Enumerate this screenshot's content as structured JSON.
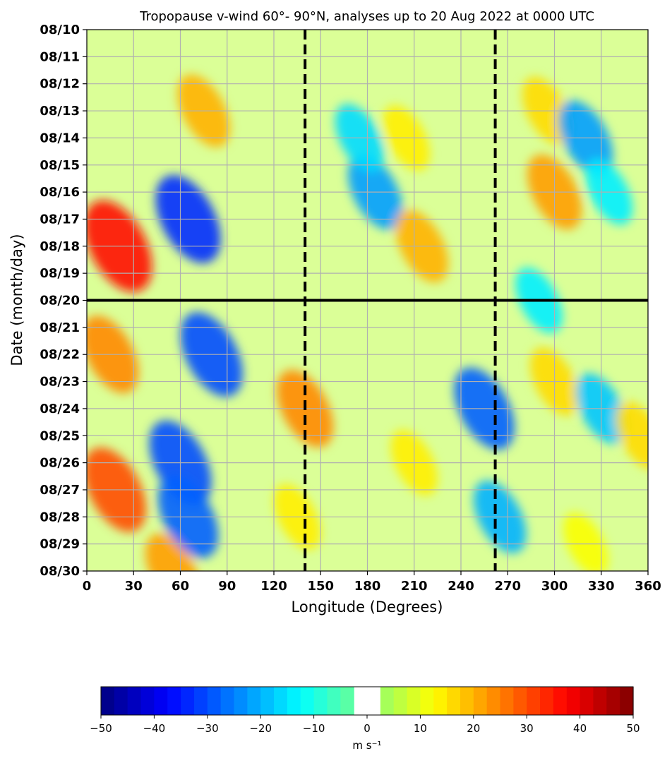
{
  "chart_data": {
    "type": "heatmap",
    "title": "Tropopause v-wind 60°- 90°N, analyses up to 20 Aug 2022 at 0000 UTC",
    "xlabel": "Longitude (Degrees)",
    "ylabel": "Date (month/day)",
    "xlim": [
      0,
      360
    ],
    "xticks": [
      0,
      30,
      60,
      90,
      120,
      150,
      180,
      210,
      240,
      270,
      300,
      330,
      360
    ],
    "xtick_labels": [
      "0",
      "30",
      "60",
      "90",
      "120",
      "150",
      "180",
      "210",
      "240",
      "270",
      "300",
      "330",
      "360"
    ],
    "ytick_labels": [
      "08/10",
      "08/11",
      "08/12",
      "08/13",
      "08/14",
      "08/15",
      "08/16",
      "08/17",
      "08/18",
      "08/19",
      "08/20",
      "08/21",
      "08/22",
      "08/23",
      "08/24",
      "08/25",
      "08/26",
      "08/27",
      "08/28",
      "08/29",
      "08/30"
    ],
    "y_axis_direction": "dates increase downward",
    "grid": true,
    "reference_lines": {
      "analysis_date": "08/20",
      "longitudes": [
        140,
        262
      ]
    },
    "colorbar": {
      "label": "m s⁻¹",
      "range": [
        -50,
        50
      ],
      "ticks": [
        -50,
        -40,
        -30,
        -20,
        -10,
        0,
        10,
        20,
        30,
        40,
        50
      ],
      "tick_labels": [
        "−50",
        "−40",
        "−30",
        "−20",
        "−10",
        "0",
        "10",
        "20",
        "30",
        "40",
        "50"
      ],
      "levels": [
        -50,
        -47.5,
        -45,
        -42.5,
        -40,
        -37.5,
        -35,
        -32.5,
        -30,
        -27.5,
        -25,
        -22.5,
        -20,
        -17.5,
        -15,
        -12.5,
        -10,
        -7.5,
        -5,
        -2.5,
        2.5,
        5,
        7.5,
        10,
        12.5,
        15,
        17.5,
        20,
        22.5,
        25,
        27.5,
        30,
        32.5,
        35,
        37.5,
        40,
        42.5,
        45,
        47.5,
        50
      ],
      "masked_range": [
        -2.5,
        2.5
      ],
      "colormap": "jet"
    },
    "field_features": [
      {
        "lon": 20,
        "date": "08/18",
        "v": 36
      },
      {
        "lon": 15,
        "date": "08/22",
        "v": 24
      },
      {
        "lon": 18,
        "date": "08/27",
        "v": 30
      },
      {
        "lon": 55,
        "date": "08/30",
        "v": 22
      },
      {
        "lon": 75,
        "date": "08/13",
        "v": 20
      },
      {
        "lon": 65,
        "date": "08/17",
        "v": -33
      },
      {
        "lon": 80,
        "date": "08/22",
        "v": -30
      },
      {
        "lon": 60,
        "date": "08/26",
        "v": -30
      },
      {
        "lon": 65,
        "date": "08/28",
        "v": -28
      },
      {
        "lon": 140,
        "date": "08/24",
        "v": 24
      },
      {
        "lon": 135,
        "date": "08/28",
        "v": 14
      },
      {
        "lon": 185,
        "date": "08/16",
        "v": -22
      },
      {
        "lon": 175,
        "date": "08/14",
        "v": -16
      },
      {
        "lon": 205,
        "date": "08/14",
        "v": 14
      },
      {
        "lon": 215,
        "date": "08/18",
        "v": 20
      },
      {
        "lon": 210,
        "date": "08/26",
        "v": 14
      },
      {
        "lon": 255,
        "date": "08/24",
        "v": -28
      },
      {
        "lon": 265,
        "date": "08/28",
        "v": -20
      },
      {
        "lon": 300,
        "date": "08/16",
        "v": 22
      },
      {
        "lon": 295,
        "date": "08/13",
        "v": 16
      },
      {
        "lon": 320,
        "date": "08/14",
        "v": -22
      },
      {
        "lon": 335,
        "date": "08/16",
        "v": -14
      },
      {
        "lon": 300,
        "date": "08/23",
        "v": 16
      },
      {
        "lon": 330,
        "date": "08/24",
        "v": -18
      },
      {
        "lon": 355,
        "date": "08/25",
        "v": 16
      },
      {
        "lon": 320,
        "date": "08/29",
        "v": 12
      },
      {
        "lon": 290,
        "date": "08/20",
        "v": -14
      }
    ]
  }
}
